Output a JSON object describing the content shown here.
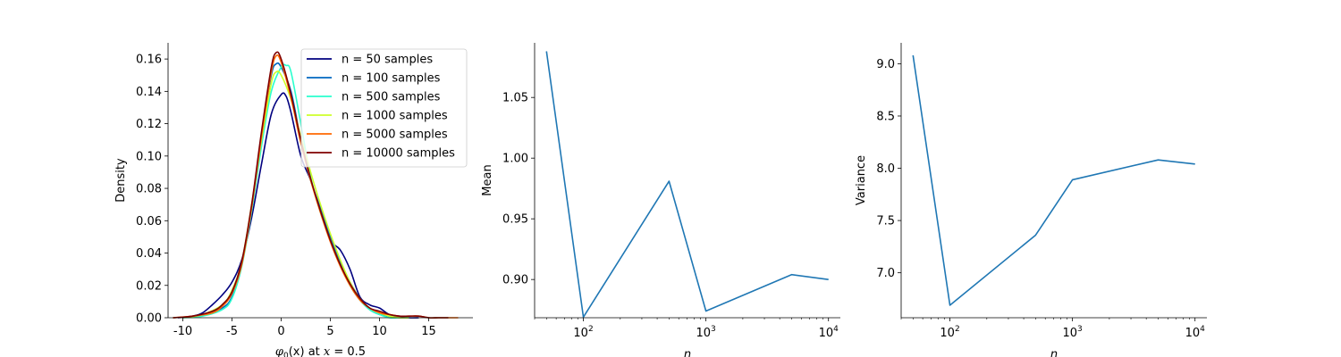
{
  "chart_data": [
    {
      "type": "line",
      "subtype": "kde-density",
      "xlabel_parts": [
        "φ",
        "0",
        "(x) at ",
        "x",
        " = 0.5"
      ],
      "ylabel": "Density",
      "xlim": [
        -11.5,
        19.5
      ],
      "ylim": [
        0,
        0.17
      ],
      "xticks": [
        -10,
        -5,
        0,
        5,
        10,
        15
      ],
      "yticks": [
        0,
        0.02,
        0.04,
        0.06,
        0.08,
        0.1,
        0.12,
        0.14,
        0.16
      ],
      "ytick_labels": [
        "0.00",
        "0.02",
        "0.04",
        "0.06",
        "0.08",
        "0.10",
        "0.12",
        "0.14",
        "0.16"
      ],
      "legend_position": "top-right",
      "series": [
        {
          "name": "n = 50 samples",
          "color": "#00007f",
          "x": [
            -10.5,
            -9,
            -8,
            -7,
            -6,
            -5,
            -4,
            -3,
            -2,
            -1,
            0,
            0.5,
            1,
            2,
            3,
            4,
            5,
            6,
            7,
            8,
            9,
            10,
            11,
            12,
            13,
            14
          ],
          "y": [
            0,
            0.001,
            0.003,
            0.008,
            0.014,
            0.022,
            0.036,
            0.062,
            0.095,
            0.126,
            0.138,
            0.137,
            0.127,
            0.1,
            0.085,
            0.066,
            0.048,
            0.042,
            0.03,
            0.013,
            0.008,
            0.006,
            0.002,
            0.001,
            0,
            0
          ]
        },
        {
          "name": "n = 100 samples",
          "color": "#0067c1",
          "x": [
            -10,
            -8,
            -6,
            -5,
            -4,
            -3,
            -2,
            -1,
            -0.5,
            0,
            1,
            2,
            3,
            4,
            5,
            6,
            7,
            8,
            9,
            10,
            11,
            12,
            13
          ],
          "y": [
            0,
            0.002,
            0.006,
            0.013,
            0.033,
            0.069,
            0.113,
            0.15,
            0.157,
            0.155,
            0.14,
            0.11,
            0.085,
            0.068,
            0.05,
            0.035,
            0.022,
            0.012,
            0.005,
            0.002,
            0.001,
            0,
            0
          ]
        },
        {
          "name": "n = 500 samples",
          "color": "#29ffce",
          "x": [
            -10,
            -8,
            -6,
            -5,
            -4,
            -3,
            -2,
            -1,
            0,
            0.5,
            1,
            2,
            3,
            4,
            5,
            6,
            7,
            8,
            9,
            10,
            11,
            12
          ],
          "y": [
            0,
            0.001,
            0.005,
            0.012,
            0.032,
            0.066,
            0.106,
            0.14,
            0.155,
            0.156,
            0.152,
            0.12,
            0.087,
            0.065,
            0.048,
            0.033,
            0.02,
            0.011,
            0.005,
            0.002,
            0,
            0
          ]
        },
        {
          "name": "n = 1000 samples",
          "color": "#ceff29",
          "x": [
            -10,
            -8,
            -6,
            -5,
            -4,
            -3,
            -2,
            -1,
            -0.5,
            0,
            1,
            2,
            3,
            4,
            5,
            6,
            7,
            8,
            9,
            10,
            11,
            12,
            13
          ],
          "y": [
            0,
            0.002,
            0.008,
            0.017,
            0.035,
            0.07,
            0.11,
            0.145,
            0.152,
            0.15,
            0.135,
            0.112,
            0.09,
            0.07,
            0.052,
            0.036,
            0.022,
            0.012,
            0.006,
            0.003,
            0.001,
            0,
            0
          ]
        },
        {
          "name": "n = 5000 samples",
          "color": "#ff6800",
          "x": [
            -11,
            -9,
            -7,
            -6,
            -5,
            -4,
            -3,
            -2,
            -1,
            -0.5,
            0,
            1,
            2,
            3,
            4,
            5,
            6,
            7,
            8,
            9,
            10,
            11,
            12,
            13,
            14,
            15,
            16,
            17,
            18
          ],
          "y": [
            0,
            0.001,
            0.003,
            0.007,
            0.015,
            0.033,
            0.068,
            0.112,
            0.152,
            0.162,
            0.158,
            0.136,
            0.108,
            0.085,
            0.065,
            0.047,
            0.032,
            0.02,
            0.011,
            0.006,
            0.003,
            0.002,
            0.001,
            0.001,
            0.001,
            0,
            0,
            0,
            0
          ]
        },
        {
          "name": "n = 10000 samples",
          "color": "#7f0000",
          "x": [
            -11,
            -9,
            -7,
            -6,
            -5,
            -4,
            -3,
            -2,
            -1,
            -0.5,
            0,
            1,
            2,
            3,
            4,
            5,
            6,
            7,
            8,
            9,
            10,
            11,
            12,
            13,
            14,
            15,
            16,
            17
          ],
          "y": [
            0,
            0.001,
            0.004,
            0.008,
            0.016,
            0.035,
            0.07,
            0.115,
            0.155,
            0.164,
            0.16,
            0.138,
            0.11,
            0.086,
            0.066,
            0.048,
            0.033,
            0.021,
            0.012,
            0.006,
            0.004,
            0.002,
            0.001,
            0.001,
            0.001,
            0,
            0,
            0
          ]
        }
      ]
    },
    {
      "type": "line",
      "xlabel": "n",
      "ylabel": "Mean",
      "xscale": "log",
      "xlim": [
        40,
        12500
      ],
      "ylim": [
        0.8685,
        1.095
      ],
      "xticks": [
        100,
        1000,
        10000
      ],
      "xtick_mantissa": "10",
      "xtick_exponents": [
        "2",
        "3",
        "4"
      ],
      "yticks": [
        0.9,
        0.95,
        1.0,
        1.05
      ],
      "ytick_labels": [
        "0.90",
        "0.95",
        "1.00",
        "1.05"
      ],
      "color": "#1f77b4",
      "x": [
        50,
        100,
        500,
        1000,
        5000,
        10000
      ],
      "y": [
        1.088,
        0.869,
        0.981,
        0.874,
        0.904,
        0.9
      ]
    },
    {
      "type": "line",
      "xlabel": "n",
      "ylabel": "Variance",
      "xscale": "log",
      "xlim": [
        40,
        12500
      ],
      "ylim": [
        6.57,
        9.2
      ],
      "xticks": [
        100,
        1000,
        10000
      ],
      "xtick_mantissa": "10",
      "xtick_exponents": [
        "2",
        "3",
        "4"
      ],
      "yticks": [
        7.0,
        7.5,
        8.0,
        8.5,
        9.0
      ],
      "ytick_labels": [
        "7.0",
        "7.5",
        "8.0",
        "8.5",
        "9.0"
      ],
      "color": "#1f77b4",
      "x": [
        50,
        100,
        500,
        1000,
        5000,
        10000
      ],
      "y": [
        9.08,
        6.69,
        7.36,
        7.89,
        8.08,
        8.04
      ]
    }
  ]
}
